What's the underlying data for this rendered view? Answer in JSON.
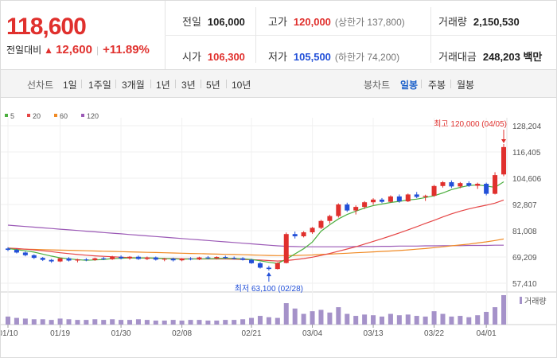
{
  "summary": {
    "current_price": "118,600",
    "change_label": "전일대비",
    "change_arrow": "▲",
    "change_amount": "12,600",
    "change_percent": "+11.89%",
    "prev_close_label": "전일",
    "prev_close": "106,000",
    "open_label": "시가",
    "open": "106,300",
    "high_label": "고가",
    "high": "120,000",
    "upper_limit": "(상한가 137,800)",
    "low_label": "저가",
    "low": "105,500",
    "lower_limit": "(하한가 74,200)",
    "volume_label": "거래량",
    "volume": "2,150,530",
    "value_label": "거래대금",
    "value": "248,203 백만"
  },
  "toolbar": {
    "chart_type_label": "선차트",
    "periods": [
      "1일",
      "1주일",
      "3개월",
      "1년",
      "3년",
      "5년",
      "10년"
    ],
    "candle_label": "봉차트",
    "candle_types": [
      "일봉",
      "주봉",
      "월봉"
    ],
    "active_candle": "일봉"
  },
  "chart_data": {
    "type": "candlestick",
    "legend": [
      {
        "label": "5",
        "color": "#4caf3f"
      },
      {
        "label": "20",
        "color": "#e54545"
      },
      {
        "label": "60",
        "color": "#f08a24"
      },
      {
        "label": "120",
        "color": "#9b59b6"
      }
    ],
    "ylim": [
      57410,
      128204
    ],
    "yticks": [
      "128,204",
      "116,405",
      "104,606",
      "92,807",
      "81,008",
      "69,209",
      "57,410"
    ],
    "ytick_values": [
      128204,
      116405,
      104606,
      92807,
      81008,
      69209,
      57410
    ],
    "xticks": [
      {
        "label": "01/10",
        "index": 0
      },
      {
        "label": "01/19",
        "index": 6
      },
      {
        "label": "01/30",
        "index": 13
      },
      {
        "label": "02/08",
        "index": 20
      },
      {
        "label": "02/21",
        "index": 28
      },
      {
        "label": "03/04",
        "index": 35
      },
      {
        "label": "03/13",
        "index": 42
      },
      {
        "label": "03/22",
        "index": 49
      },
      {
        "label": "04/01",
        "index": 55
      }
    ],
    "up_color": "#e0302d",
    "down_color": "#2250d8",
    "candles": [
      [
        73000,
        73600,
        71800,
        72400
      ],
      [
        72400,
        72900,
        70800,
        71200
      ],
      [
        71200,
        71700,
        69500,
        70000
      ],
      [
        70000,
        70400,
        68300,
        68800
      ],
      [
        68800,
        69200,
        67400,
        67900
      ],
      [
        67900,
        68300,
        66600,
        67200
      ],
      [
        67200,
        68900,
        66900,
        68600
      ],
      [
        68600,
        69100,
        67200,
        67600
      ],
      [
        67600,
        68400,
        66800,
        68100
      ],
      [
        68100,
        68700,
        67300,
        67800
      ],
      [
        67800,
        68900,
        67500,
        68600
      ],
      [
        68600,
        69200,
        67800,
        68200
      ],
      [
        68200,
        69700,
        67900,
        69300
      ],
      [
        69300,
        69900,
        68100,
        68600
      ],
      [
        68600,
        69600,
        68000,
        69300
      ],
      [
        69300,
        69800,
        67900,
        68300
      ],
      [
        68300,
        69400,
        67800,
        69000
      ],
      [
        69000,
        69400,
        67600,
        68000
      ],
      [
        68000,
        68800,
        67300,
        68400
      ],
      [
        68400,
        68900,
        67200,
        67700
      ],
      [
        67700,
        68700,
        67300,
        68500
      ],
      [
        68500,
        69100,
        67700,
        68100
      ],
      [
        68100,
        69300,
        67800,
        69000
      ],
      [
        69000,
        69600,
        68200,
        68700
      ],
      [
        68700,
        69500,
        68100,
        69200
      ],
      [
        69200,
        69800,
        68400,
        68800
      ],
      [
        68800,
        69400,
        68100,
        68600
      ],
      [
        68600,
        69100,
        67600,
        67900
      ],
      [
        67900,
        68400,
        66100,
        66400
      ],
      [
        66400,
        66900,
        64000,
        64400
      ],
      [
        64400,
        65200,
        63100,
        63800
      ],
      [
        63800,
        66800,
        63600,
        66500
      ],
      [
        66500,
        80200,
        66300,
        79500
      ],
      [
        79500,
        80600,
        77500,
        78500
      ],
      [
        78500,
        80800,
        78000,
        80300
      ],
      [
        80300,
        82700,
        79600,
        82300
      ],
      [
        82300,
        85900,
        81700,
        85400
      ],
      [
        85400,
        88200,
        84200,
        87600
      ],
      [
        87600,
        93300,
        86900,
        92800
      ],
      [
        92800,
        93600,
        89500,
        90100
      ],
      [
        90100,
        92400,
        88300,
        91700
      ],
      [
        91700,
        94300,
        90800,
        93800
      ],
      [
        93800,
        95600,
        92600,
        95000
      ],
      [
        95000,
        95700,
        93400,
        94000
      ],
      [
        94000,
        96900,
        93600,
        96400
      ],
      [
        96400,
        97300,
        93600,
        94200
      ],
      [
        94200,
        97700,
        93900,
        97300
      ],
      [
        97300,
        98400,
        95600,
        96200
      ],
      [
        96200,
        97200,
        94400,
        96700
      ],
      [
        96700,
        101600,
        96300,
        101100
      ],
      [
        101100,
        103300,
        100400,
        102800
      ],
      [
        102800,
        103600,
        100200,
        100900
      ],
      [
        100900,
        102900,
        100100,
        102400
      ],
      [
        102400,
        103200,
        100700,
        101200
      ],
      [
        101200,
        102600,
        99800,
        102100
      ],
      [
        102100,
        102600,
        96900,
        97600
      ],
      [
        97600,
        107300,
        97300,
        106000
      ],
      [
        106300,
        120000,
        105500,
        118600
      ]
    ],
    "ma5": [
      73000,
      72500,
      72000,
      71400,
      70500,
      69600,
      68800,
      68400,
      68000,
      67700,
      67900,
      68100,
      68500,
      68600,
      68800,
      68700,
      68800,
      68700,
      68500,
      68400,
      68200,
      68300,
      68300,
      68400,
      68500,
      68600,
      68500,
      68400,
      68100,
      67500,
      66800,
      66300,
      68200,
      70600,
      72900,
      75900,
      80800,
      83700,
      86300,
      88300,
      89800,
      91200,
      92300,
      93000,
      93700,
      94200,
      94800,
      95200,
      95900,
      96700,
      98000,
      99500,
      100500,
      101300,
      101600,
      101100,
      100500,
      103000
    ],
    "ma20": [
      73200,
      73000,
      72700,
      72400,
      72000,
      71600,
      71100,
      70700,
      70300,
      70000,
      69700,
      69500,
      69300,
      69100,
      68900,
      68800,
      68700,
      68600,
      68500,
      68500,
      68400,
      68400,
      68300,
      68300,
      68300,
      68300,
      68200,
      68100,
      68000,
      67800,
      67600,
      67400,
      67600,
      68000,
      68500,
      69100,
      69900,
      70800,
      71800,
      72800,
      73800,
      75000,
      76200,
      77400,
      78700,
      80000,
      81400,
      82800,
      84300,
      85700,
      87200,
      88600,
      89800,
      90800,
      91700,
      92500,
      93400,
      94800
    ],
    "ma60": [
      72900,
      72800,
      72700,
      72600,
      72500,
      72400,
      72300,
      72200,
      72100,
      72000,
      71900,
      71800,
      71700,
      71600,
      71500,
      71400,
      71300,
      71200,
      71100,
      71000,
      70900,
      70800,
      70700,
      70600,
      70500,
      70400,
      70300,
      70200,
      70100,
      70000,
      69900,
      69800,
      69800,
      69900,
      70000,
      70100,
      70300,
      70500,
      70700,
      70900,
      71100,
      71300,
      71500,
      71700,
      71900,
      72100,
      72400,
      72700,
      73000,
      73400,
      73800,
      74200,
      74600,
      75000,
      75500,
      76000,
      76600,
      77300
    ],
    "ma120": [
      83500,
      83200,
      82900,
      82600,
      82300,
      82000,
      81700,
      81400,
      81100,
      80800,
      80500,
      80200,
      79900,
      79600,
      79300,
      79000,
      78700,
      78400,
      78100,
      77800,
      77500,
      77200,
      76900,
      76600,
      76300,
      76000,
      75700,
      75400,
      75100,
      74800,
      74500,
      74200,
      74000,
      73900,
      73800,
      73800,
      73800,
      73800,
      73800,
      73800,
      73900,
      73900,
      73900,
      74000,
      74000,
      74100,
      74100,
      74100,
      74200,
      74200,
      74300,
      74300,
      74300,
      74400,
      74400,
      74400,
      74500,
      74500
    ],
    "volume_label": "거래량",
    "volumes": [
      1.2,
      1.0,
      0.9,
      0.8,
      0.8,
      0.7,
      0.9,
      0.8,
      0.7,
      0.7,
      0.8,
      0.7,
      0.8,
      0.7,
      0.7,
      0.8,
      0.7,
      0.6,
      0.6,
      0.7,
      0.6,
      0.7,
      0.7,
      0.6,
      0.6,
      0.7,
      0.7,
      0.8,
      1.0,
      1.3,
      1.1,
      1.0,
      3.2,
      2.4,
      1.6,
      2.0,
      2.2,
      1.8,
      2.6,
      1.6,
      1.3,
      1.5,
      1.4,
      1.2,
      1.6,
      1.4,
      1.5,
      1.3,
      1.2,
      2.0,
      1.6,
      1.2,
      1.3,
      1.1,
      1.4,
      1.9,
      2.6,
      4.4
    ],
    "annotation_high": "최고 120,000 (04/05)",
    "annotation_low": "최저 63,100 (02/28)"
  }
}
